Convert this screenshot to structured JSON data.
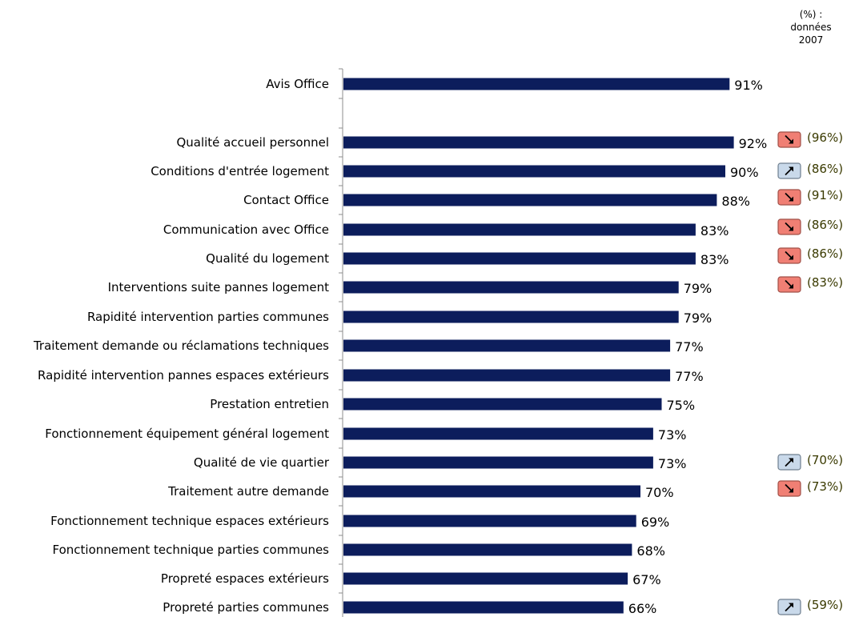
{
  "legend_note": {
    "line1": "(%) :",
    "line2": "données",
    "line3": "2007"
  },
  "colors": {
    "bar": "#0c1d5c",
    "axis": "#8c8c8c",
    "down_fill": "#f07f74",
    "down_stroke": "#a05048",
    "up_fill": "#c9d9ea",
    "up_stroke": "#6f7f8f"
  },
  "icons": {
    "down": "trend-down-icon",
    "up": "trend-up-icon"
  },
  "chart_data": {
    "type": "bar",
    "orientation": "horizontal",
    "unit": "%",
    "xlim": [
      0,
      100
    ],
    "grid": false,
    "categories": [
      "Avis Office",
      "Qualité accueil personnel",
      "Conditions d'entrée logement",
      "Contact Office",
      "Communication avec Office",
      "Qualité du logement",
      "Interventions suite pannes logement",
      "Rapidité intervention parties communes",
      "Traitement demande ou réclamations techniques",
      "Rapidité intervention pannes espaces extérieurs",
      "Prestation entretien",
      "Fonctionnement équipement général logement",
      "Qualité de vie quartier",
      "Traitement autre demande",
      "Fonctionnement technique espaces extérieurs",
      "Fonctionnement technique parties communes",
      "Propreté espaces extérieurs",
      "Propreté parties communes"
    ],
    "values": [
      91,
      92,
      90,
      88,
      83,
      83,
      79,
      79,
      77,
      77,
      75,
      73,
      73,
      70,
      69,
      68,
      67,
      66
    ],
    "value_labels": [
      "91%",
      "92%",
      "90%",
      "88%",
      "83%",
      "83%",
      "79%",
      "79%",
      "77%",
      "77%",
      "75%",
      "73%",
      "73%",
      "70%",
      "69%",
      "68%",
      "67%",
      "66%"
    ],
    "comparisons_2007": [
      null,
      {
        "trend": "down",
        "label": "(96%)"
      },
      {
        "trend": "up",
        "label": "(86%)"
      },
      {
        "trend": "down",
        "label": "(91%)"
      },
      {
        "trend": "down",
        "label": "(86%)"
      },
      {
        "trend": "down",
        "label": "(86%)"
      },
      {
        "trend": "down",
        "label": "(83%)"
      },
      null,
      null,
      null,
      null,
      null,
      {
        "trend": "up",
        "label": "(70%)"
      },
      {
        "trend": "down",
        "label": "(73%)"
      },
      null,
      null,
      null,
      {
        "trend": "up",
        "label": "(59%)"
      }
    ]
  }
}
